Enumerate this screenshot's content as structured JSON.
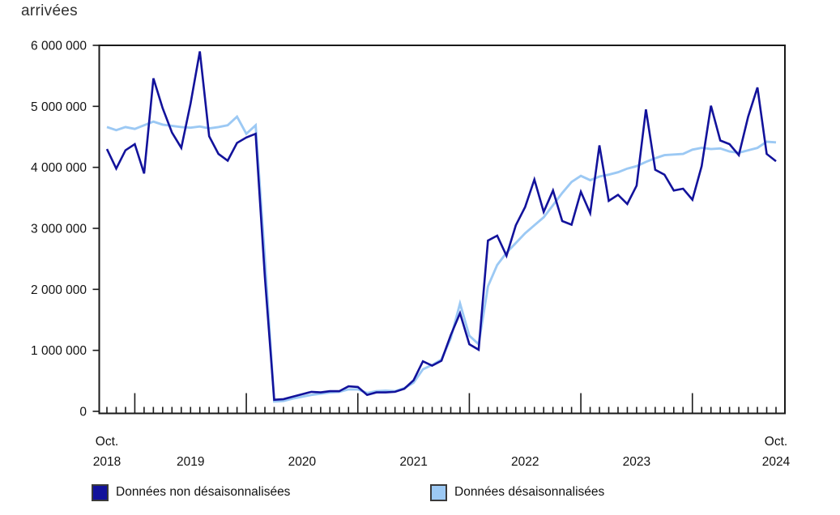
{
  "title": "arrivées",
  "colors": {
    "unadjusted_line": "#12129B",
    "adjusted_line": "#9CC9F4",
    "axis": "#1a1a1a",
    "text": "#121212",
    "background": "#ffffff"
  },
  "y_axis": {
    "tick_labels": [
      "0",
      "1 000 000",
      "2 000 000",
      "3 000 000",
      "4 000 000",
      "5 000 000",
      "6 000 000"
    ],
    "min": 0,
    "max_millions": 6
  },
  "x_axis": {
    "start_month_label": "Oct.",
    "start_year_label": "2018",
    "end_month_label": "Oct.",
    "end_year_label": "2024",
    "year_labels": [
      "2019",
      "2020",
      "2021",
      "2022",
      "2023",
      "2024"
    ]
  },
  "legend": {
    "items": [
      {
        "label": "Données non désaisonnalisées",
        "color": "#12129B"
      },
      {
        "label": "Données désaisonnalisées",
        "color": "#9CC9F4"
      }
    ]
  },
  "chart_data": {
    "type": "line",
    "title": "arrivées",
    "ylabel": "arrivées",
    "unit": "millions of arrivals",
    "ylim_millions": [
      0,
      6
    ],
    "grid": false,
    "legend_position": "bottom",
    "x": [
      "2018-10",
      "2018-11",
      "2018-12",
      "2019-01",
      "2019-02",
      "2019-03",
      "2019-04",
      "2019-05",
      "2019-06",
      "2019-07",
      "2019-08",
      "2019-09",
      "2019-10",
      "2019-11",
      "2019-12",
      "2020-01",
      "2020-02",
      "2020-03",
      "2020-04",
      "2020-05",
      "2020-06",
      "2020-07",
      "2020-08",
      "2020-09",
      "2020-10",
      "2020-11",
      "2020-12",
      "2021-01",
      "2021-02",
      "2021-03",
      "2021-04",
      "2021-05",
      "2021-06",
      "2021-07",
      "2021-08",
      "2021-09",
      "2021-10",
      "2021-11",
      "2021-12",
      "2022-01",
      "2022-02",
      "2022-03",
      "2022-04",
      "2022-05",
      "2022-06",
      "2022-07",
      "2022-08",
      "2022-09",
      "2022-10",
      "2022-11",
      "2022-12",
      "2023-01",
      "2023-02",
      "2023-03",
      "2023-04",
      "2023-05",
      "2023-06",
      "2023-07",
      "2023-08",
      "2023-09",
      "2023-10",
      "2023-11",
      "2023-12",
      "2024-01",
      "2024-02",
      "2024-03",
      "2024-04",
      "2024-05",
      "2024-06",
      "2024-07",
      "2024-08",
      "2024-09",
      "2024-10"
    ],
    "series": [
      {
        "name": "Données non désaisonnalisées",
        "color": "#12129B",
        "values_millions": [
          4.3,
          3.98,
          4.28,
          4.38,
          3.9,
          5.46,
          4.97,
          4.57,
          4.32,
          5.05,
          5.9,
          4.51,
          4.22,
          4.11,
          4.4,
          4.49,
          4.55,
          2.2,
          0.19,
          0.2,
          0.24,
          0.28,
          0.32,
          0.31,
          0.33,
          0.33,
          0.41,
          0.4,
          0.27,
          0.31,
          0.31,
          0.32,
          0.37,
          0.51,
          0.82,
          0.75,
          0.83,
          1.25,
          1.61,
          1.1,
          1.01,
          2.8,
          2.88,
          2.55,
          3.05,
          3.35,
          3.8,
          3.27,
          3.62,
          3.12,
          3.06,
          3.6,
          3.25,
          4.36,
          3.45,
          3.55,
          3.4,
          3.7,
          4.95,
          3.96,
          3.88,
          3.62,
          3.65,
          3.47,
          4.02,
          5.01,
          4.44,
          4.38,
          4.2,
          4.83,
          5.31,
          4.22,
          4.1
        ]
      },
      {
        "name": "Données désaisonnalisées",
        "color": "#9CC9F4",
        "values_millions": [
          4.66,
          4.61,
          4.66,
          4.63,
          4.69,
          4.75,
          4.7,
          4.68,
          4.66,
          4.65,
          4.67,
          4.64,
          4.66,
          4.69,
          4.83,
          4.55,
          4.69,
          2.5,
          0.16,
          0.17,
          0.21,
          0.24,
          0.27,
          0.29,
          0.31,
          0.32,
          0.36,
          0.36,
          0.3,
          0.33,
          0.34,
          0.33,
          0.38,
          0.47,
          0.69,
          0.76,
          0.85,
          1.2,
          1.77,
          1.24,
          1.1,
          2.05,
          2.4,
          2.6,
          2.76,
          2.92,
          3.05,
          3.18,
          3.38,
          3.58,
          3.76,
          3.86,
          3.79,
          3.85,
          3.88,
          3.92,
          3.98,
          4.02,
          4.09,
          4.15,
          4.2,
          4.21,
          4.22,
          4.29,
          4.32,
          4.3,
          4.31,
          4.26,
          4.24,
          4.28,
          4.32,
          4.42,
          4.41
        ]
      }
    ]
  }
}
